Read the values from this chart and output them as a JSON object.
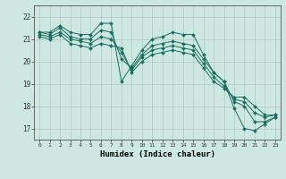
{
  "xlabel": "Humidex (Indice chaleur)",
  "bg_color": "#cce8e0",
  "grid_color": "#b0c8c0",
  "line_color": "#1a6e60",
  "marker_color": "#1a6e60",
  "xlim": [
    -0.5,
    23.5
  ],
  "ylim": [
    16.5,
    22.5
  ],
  "yticks": [
    17,
    18,
    19,
    20,
    21,
    22
  ],
  "xticks": [
    0,
    1,
    2,
    3,
    4,
    5,
    6,
    7,
    8,
    9,
    10,
    11,
    12,
    13,
    14,
    15,
    16,
    17,
    18,
    19,
    20,
    21,
    22,
    23
  ],
  "series": [
    [
      21.3,
      21.3,
      21.6,
      21.3,
      21.2,
      21.2,
      21.7,
      21.7,
      19.1,
      19.8,
      20.5,
      21.0,
      21.1,
      21.3,
      21.2,
      21.2,
      20.3,
      19.5,
      19.1,
      17.9,
      17.0,
      16.9,
      17.2,
      17.5
    ],
    [
      21.3,
      21.2,
      21.5,
      21.1,
      21.0,
      21.0,
      21.4,
      21.3,
      20.1,
      19.7,
      20.3,
      20.7,
      20.8,
      20.9,
      20.8,
      20.7,
      20.1,
      19.5,
      19.1,
      18.2,
      18.0,
      17.3,
      17.3,
      17.5
    ],
    [
      21.2,
      21.1,
      21.3,
      21.0,
      20.9,
      20.8,
      21.1,
      21.0,
      20.4,
      19.6,
      20.2,
      20.5,
      20.6,
      20.7,
      20.6,
      20.5,
      19.9,
      19.3,
      18.9,
      18.3,
      18.2,
      17.7,
      17.5,
      17.6
    ],
    [
      21.1,
      21.0,
      21.2,
      20.8,
      20.7,
      20.6,
      20.8,
      20.7,
      20.6,
      19.5,
      20.0,
      20.3,
      20.4,
      20.5,
      20.4,
      20.3,
      19.7,
      19.1,
      18.8,
      18.4,
      18.4,
      18.0,
      17.6,
      17.6
    ]
  ],
  "figsize": [
    3.2,
    2.0
  ],
  "dpi": 100
}
